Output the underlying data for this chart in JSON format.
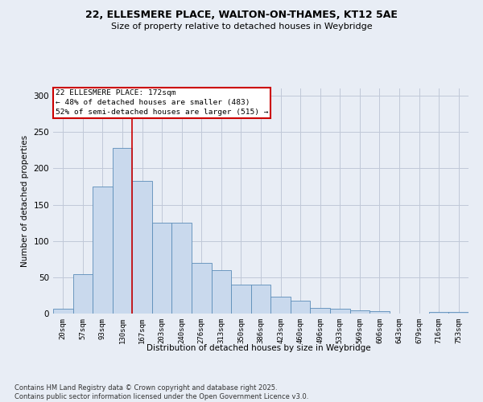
{
  "title_line1": "22, ELLESMERE PLACE, WALTON-ON-THAMES, KT12 5AE",
  "title_line2": "Size of property relative to detached houses in Weybridge",
  "xlabel": "Distribution of detached houses by size in Weybridge",
  "ylabel": "Number of detached properties",
  "categories": [
    "20sqm",
    "57sqm",
    "93sqm",
    "130sqm",
    "167sqm",
    "203sqm",
    "240sqm",
    "276sqm",
    "313sqm",
    "350sqm",
    "386sqm",
    "423sqm",
    "460sqm",
    "496sqm",
    "533sqm",
    "569sqm",
    "606sqm",
    "643sqm",
    "679sqm",
    "716sqm",
    "753sqm"
  ],
  "bar_values": [
    7,
    54,
    175,
    228,
    183,
    125,
    125,
    70,
    60,
    40,
    40,
    23,
    18,
    8,
    7,
    4,
    3,
    0,
    0,
    2,
    2
  ],
  "bar_color": "#c9d9ed",
  "bar_edge_color": "#5b8db8",
  "grid_color": "#c0c8d8",
  "background_color": "#e8edf5",
  "annotation_text": "22 ELLESMERE PLACE: 172sqm\n← 48% of detached houses are smaller (483)\n52% of semi-detached houses are larger (515) →",
  "marker_bin_index": 4,
  "ylim": [
    0,
    310
  ],
  "yticks": [
    0,
    50,
    100,
    150,
    200,
    250,
    300
  ],
  "footnote": "Contains HM Land Registry data © Crown copyright and database right 2025.\nContains public sector information licensed under the Open Government Licence v3.0."
}
